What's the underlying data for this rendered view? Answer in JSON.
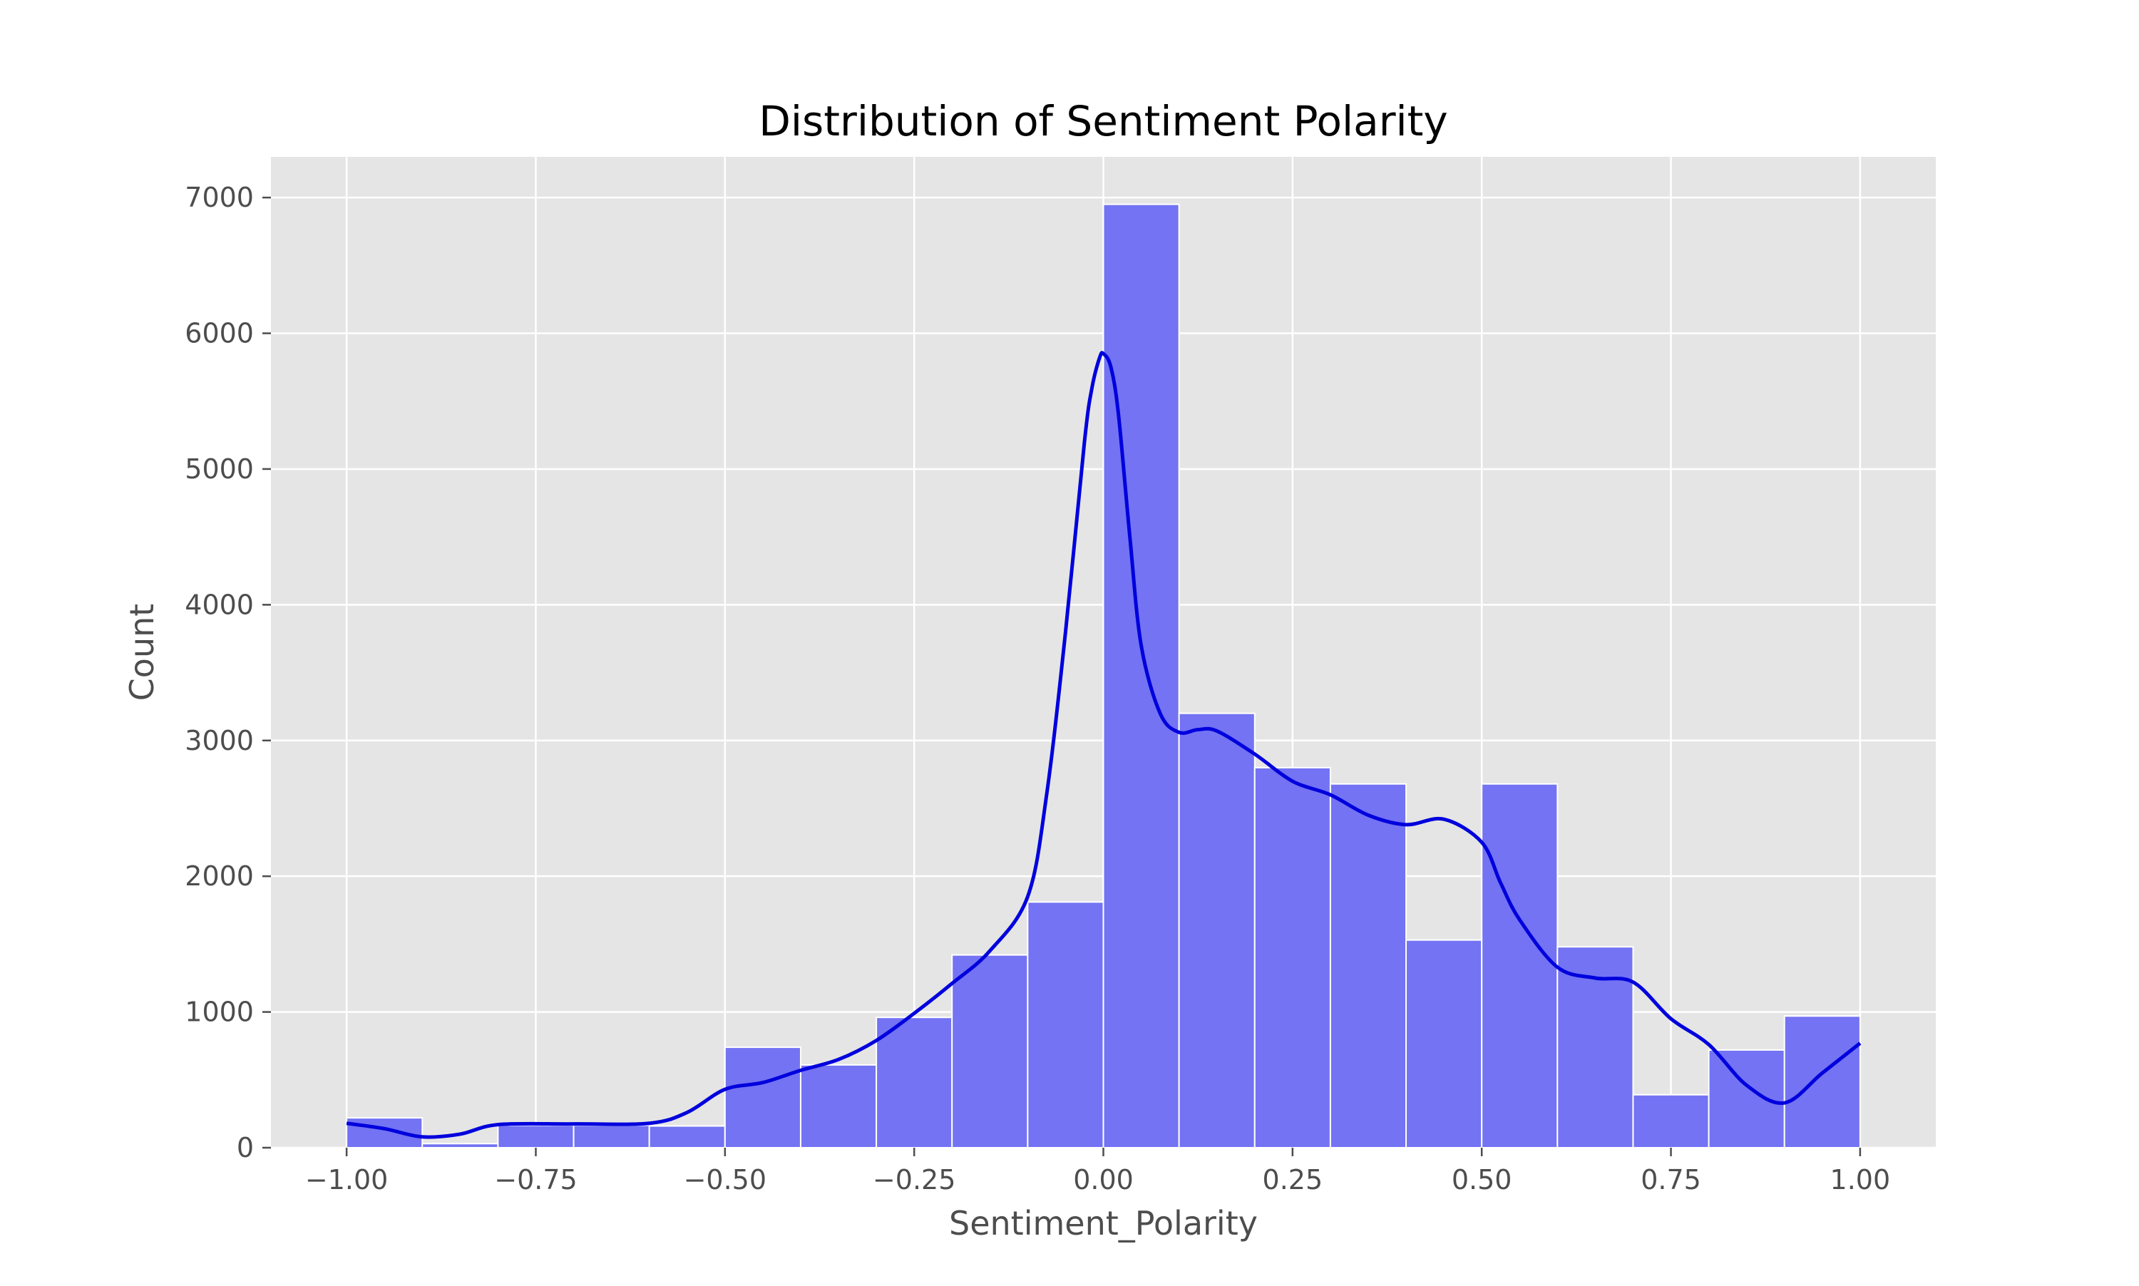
{
  "chart_data": {
    "type": "bar",
    "title": "Distribution of Sentiment Polarity",
    "xlabel": "Sentiment_Polarity",
    "ylabel": "Count",
    "xlim": [
      -1.1,
      1.1
    ],
    "ylim": [
      0,
      7300
    ],
    "x_ticks": [
      -1.0,
      -0.75,
      -0.5,
      -0.25,
      0.0,
      0.25,
      0.5,
      0.75,
      1.0
    ],
    "x_tick_labels": [
      "−1.00",
      "−0.75",
      "−0.50",
      "−0.25",
      "0.00",
      "0.25",
      "0.50",
      "0.75",
      "1.00"
    ],
    "y_ticks": [
      0,
      1000,
      2000,
      3000,
      4000,
      5000,
      6000,
      7000
    ],
    "y_tick_labels": [
      "0",
      "1000",
      "2000",
      "3000",
      "4000",
      "5000",
      "6000",
      "7000"
    ],
    "grid": true,
    "bin_edges": [
      -1.0,
      -0.9,
      -0.8,
      -0.7,
      -0.6,
      -0.5,
      -0.4,
      -0.3,
      -0.2,
      -0.1,
      0.0,
      0.1,
      0.2,
      0.3,
      0.4,
      0.5,
      0.6,
      0.7,
      0.8,
      0.9,
      1.0
    ],
    "values": [
      220,
      30,
      165,
      165,
      160,
      740,
      610,
      960,
      1420,
      1810,
      6950,
      3200,
      2800,
      2680,
      1530,
      2680,
      1480,
      390,
      720,
      970
    ],
    "kde_x": [
      -1.0,
      -0.95,
      -0.9,
      -0.85,
      -0.8,
      -0.7,
      -0.6,
      -0.55,
      -0.5,
      -0.45,
      -0.4,
      -0.35,
      -0.3,
      -0.25,
      -0.2,
      -0.15,
      -0.1,
      -0.075,
      -0.05,
      -0.025,
      -0.015,
      -0.005,
      0.0,
      0.01,
      0.02,
      0.035,
      0.05,
      0.075,
      0.1,
      0.125,
      0.15,
      0.2,
      0.25,
      0.3,
      0.35,
      0.4,
      0.45,
      0.5,
      0.525,
      0.55,
      0.6,
      0.65,
      0.7,
      0.75,
      0.8,
      0.85,
      0.9,
      0.95,
      1.0
    ],
    "kde_y": [
      180,
      140,
      80,
      100,
      170,
      175,
      180,
      260,
      430,
      480,
      570,
      650,
      790,
      990,
      1210,
      1450,
      1850,
      2600,
      3800,
      5200,
      5600,
      5820,
      5850,
      5750,
      5400,
      4500,
      3700,
      3200,
      3060,
      3080,
      3070,
      2900,
      2700,
      2600,
      2450,
      2380,
      2420,
      2250,
      1950,
      1680,
      1330,
      1250,
      1220,
      950,
      760,
      460,
      330,
      550,
      770
    ],
    "bar_color": "#7373f3",
    "bar_edge_color": "#ffffff",
    "kde_color": "#0000dd",
    "plot_background": "#e5e5e5",
    "grid_color": "#ffffff"
  }
}
